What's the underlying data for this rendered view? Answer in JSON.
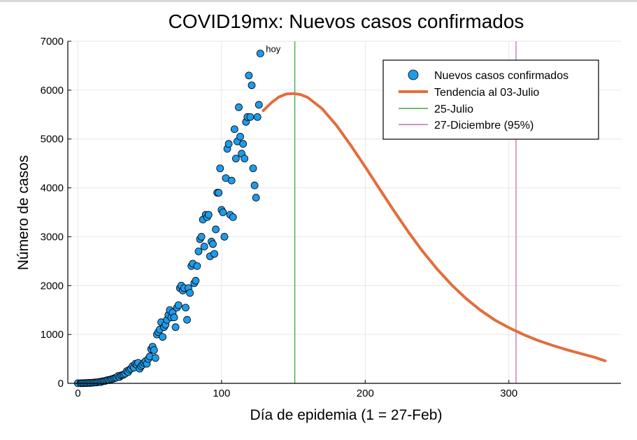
{
  "chart_data": {
    "type": "scatter",
    "title": "COVID19mx: Nuevos casos confirmados",
    "xlabel": "Día de epidemia (1 = 27-Feb)",
    "ylabel": "Número de casos",
    "xlim": [
      -7,
      378
    ],
    "ylim": [
      0,
      7000
    ],
    "xticks": [
      0,
      100,
      200,
      300
    ],
    "yticks": [
      0,
      1000,
      2000,
      3000,
      4000,
      5000,
      6000,
      7000
    ],
    "grid": true,
    "legend_position": "top-right",
    "colors": {
      "points": "#1f9bea",
      "trend": "#e26e3c",
      "peak_line": "#3ea83e",
      "end_line": "#c36fc2"
    },
    "series": [
      {
        "name": "Nuevos casos confirmados",
        "kind": "scatter",
        "x": [
          0,
          2,
          3,
          4,
          5,
          6,
          7,
          8,
          9,
          10,
          11,
          12,
          13,
          14,
          15,
          16,
          17,
          18,
          19,
          20,
          21,
          22,
          23,
          24,
          25,
          26,
          27,
          28,
          29,
          30,
          31,
          32,
          33,
          34,
          35,
          36,
          37,
          38,
          39,
          40,
          41,
          42,
          43,
          44,
          45,
          46,
          47,
          48,
          49,
          50,
          51,
          52,
          53,
          54,
          55,
          56,
          57,
          58,
          59,
          60,
          61,
          62,
          63,
          64,
          65,
          66,
          67,
          68,
          69,
          70,
          71,
          72,
          73,
          74,
          75,
          76,
          77,
          78,
          79,
          80,
          81,
          82,
          83,
          84,
          85,
          86,
          87,
          88,
          89,
          90,
          91,
          92,
          93,
          94,
          95,
          96,
          97,
          98,
          99,
          100,
          101,
          102,
          103,
          104,
          105,
          106,
          107,
          108,
          109,
          110,
          111,
          112,
          113,
          114,
          115,
          116,
          117,
          118,
          119,
          120,
          121,
          122,
          123,
          124,
          125,
          126,
          127
        ],
        "y": [
          2,
          3,
          4,
          3,
          5,
          6,
          7,
          10,
          8,
          12,
          15,
          20,
          18,
          25,
          30,
          28,
          40,
          45,
          50,
          60,
          70,
          65,
          80,
          90,
          100,
          110,
          120,
          150,
          130,
          160,
          170,
          180,
          200,
          250,
          230,
          280,
          300,
          350,
          320,
          400,
          380,
          420,
          300,
          350,
          380,
          420,
          450,
          400,
          500,
          550,
          700,
          750,
          680,
          520,
          1000,
          1050,
          1100,
          1250,
          950,
          1150,
          1200,
          1300,
          1400,
          1500,
          1350,
          1450,
          1350,
          1150,
          1550,
          1600,
          1950,
          2000,
          1900,
          1950,
          1550,
          1300,
          1950,
          1850,
          2400,
          2450,
          2050,
          2100,
          2400,
          2700,
          2950,
          3000,
          3350,
          2800,
          3450,
          3400,
          3450,
          2600,
          2900,
          2850,
          2650,
          3150,
          3900,
          3900,
          4400,
          3550,
          3500,
          3000,
          4200,
          4800,
          4900,
          3450,
          4150,
          3400,
          5200,
          4600,
          4950,
          5650,
          5050,
          4700,
          4900,
          4600,
          5350,
          5450,
          6300,
          5450,
          6100,
          4400,
          4050,
          3800,
          5450,
          5700,
          6750
        ]
      },
      {
        "name": "Tendencia al 03-Julio",
        "kind": "line",
        "x": [
          129,
          135,
          140,
          145,
          150,
          155,
          160,
          170,
          180,
          190,
          200,
          210,
          220,
          230,
          240,
          250,
          260,
          270,
          280,
          290,
          300,
          310,
          320,
          330,
          340,
          350,
          360,
          367
        ],
        "y": [
          5580,
          5750,
          5860,
          5920,
          5930,
          5910,
          5850,
          5620,
          5280,
          4870,
          4430,
          3980,
          3530,
          3100,
          2700,
          2340,
          2020,
          1740,
          1500,
          1300,
          1140,
          1000,
          880,
          780,
          690,
          610,
          530,
          460
        ]
      },
      {
        "name": "25-Julio",
        "kind": "vline",
        "x": 151
      },
      {
        "name": "27-Diciembre (95%)",
        "kind": "vline",
        "x": 305
      }
    ],
    "annotations": [
      {
        "text": "hoy",
        "x": 127,
        "y": 6750
      }
    ]
  }
}
